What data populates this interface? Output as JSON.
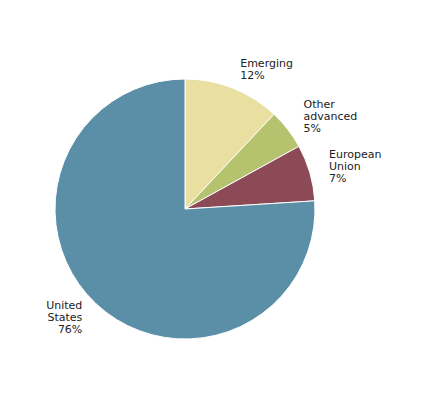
{
  "chart_data": {
    "type": "pie",
    "categories": [
      "Emerging",
      "Other\nadvanced",
      "European\nUnion",
      "United\nStates"
    ],
    "values": [
      12,
      5,
      7,
      76
    ],
    "value_labels": [
      "12%",
      "5%",
      "7%",
      "76%"
    ],
    "colors": [
      "#e8dfa0",
      "#b5c26e",
      "#8b4a56",
      "#5b8fa8"
    ],
    "data_labels": true
  }
}
